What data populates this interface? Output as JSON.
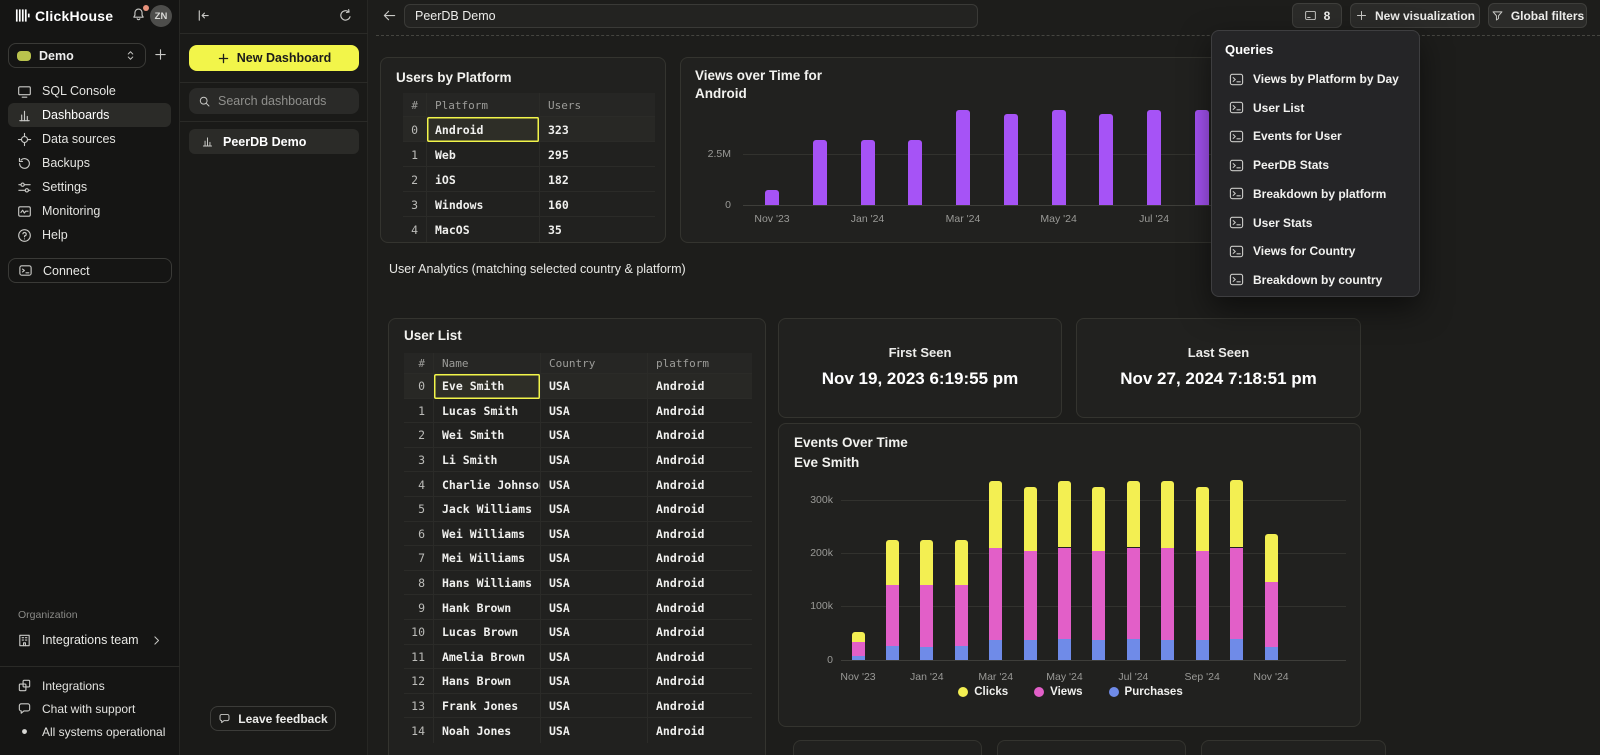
{
  "colors": {
    "accent_yellow": "#f2f54a",
    "purple": "#a653f6",
    "magenta": "#e25fc8",
    "blue": "#6f8be8",
    "chart_yellow": "#f3ef52",
    "notification_dot": "#e8927c",
    "selection_outline": "#f2f54a"
  },
  "sidebar": {
    "logo_label": "ClickHouse",
    "avatar_initials": "ZN",
    "workspace_selector": {
      "value": "Demo"
    },
    "nav": [
      {
        "label": "SQL Console",
        "icon": "sql-console-icon",
        "active": false
      },
      {
        "label": "Dashboards",
        "icon": "bar-chart-icon",
        "active": true
      },
      {
        "label": "Data sources",
        "icon": "data-sources-icon",
        "active": false
      },
      {
        "label": "Backups",
        "icon": "backups-icon",
        "active": false
      },
      {
        "label": "Settings",
        "icon": "settings-icon",
        "active": false
      },
      {
        "label": "Monitoring",
        "icon": "monitoring-icon",
        "active": false
      },
      {
        "label": "Help",
        "icon": "help-icon",
        "active": false
      }
    ],
    "connect_label": "Connect",
    "organization_section_label": "Organization",
    "organization_team": {
      "label": "Integrations team"
    },
    "footer_items": [
      {
        "label": "Integrations",
        "icon": "integrations-icon"
      },
      {
        "label": "Chat with support",
        "icon": "chat-icon"
      },
      {
        "label": "All systems operational",
        "icon": "status-dot-icon"
      }
    ]
  },
  "dashboards_panel": {
    "new_dashboard_button": "New Dashboard",
    "search_placeholder": "Search dashboards",
    "items": [
      {
        "label": "PeerDB Demo",
        "icon": "bar-chart-icon",
        "selected": true
      }
    ],
    "leave_feedback_button": "Leave feedback"
  },
  "topbar": {
    "title_value": "PeerDB Demo",
    "queries_count_button": "8",
    "new_visualization_button": "New visualization",
    "global_filters_button": "Global filters"
  },
  "queries_panel": {
    "title": "Queries",
    "items": [
      "Views by Platform by Day",
      "User List",
      "Events for User",
      "PeerDB Stats",
      "Breakdown by platform",
      "User Stats",
      "Views for Country",
      "Breakdown by country"
    ]
  },
  "users_by_platform": {
    "title": "Users by Platform",
    "columns": [
      "#",
      "Platform",
      "Users"
    ],
    "rows": [
      {
        "index": "0",
        "platform": "Android",
        "users": "323"
      },
      {
        "index": "1",
        "platform": "Web",
        "users": "295"
      },
      {
        "index": "2",
        "platform": "iOS",
        "users": "182"
      },
      {
        "index": "3",
        "platform": "Windows",
        "users": "160"
      },
      {
        "index": "4",
        "platform": "MacOS",
        "users": "35"
      }
    ],
    "selected_platform": "Android"
  },
  "analytics_section_label": "User Analytics (matching selected country & platform)",
  "user_list": {
    "title": "User List",
    "columns": [
      "#",
      "Name",
      "Country",
      "platform"
    ],
    "rows": [
      {
        "index": "0",
        "name": "Eve Smith",
        "country": "USA",
        "platform": "Android"
      },
      {
        "index": "1",
        "name": "Lucas Smith",
        "country": "USA",
        "platform": "Android"
      },
      {
        "index": "2",
        "name": "Wei Smith",
        "country": "USA",
        "platform": "Android"
      },
      {
        "index": "3",
        "name": "Li Smith",
        "country": "USA",
        "platform": "Android"
      },
      {
        "index": "4",
        "name": "Charlie Johnson",
        "country": "USA",
        "platform": "Android"
      },
      {
        "index": "5",
        "name": "Jack Williams",
        "country": "USA",
        "platform": "Android"
      },
      {
        "index": "6",
        "name": "Wei Williams",
        "country": "USA",
        "platform": "Android"
      },
      {
        "index": "7",
        "name": "Mei Williams",
        "country": "USA",
        "platform": "Android"
      },
      {
        "index": "8",
        "name": "Hans Williams",
        "country": "USA",
        "platform": "Android"
      },
      {
        "index": "9",
        "name": "Hank Brown",
        "country": "USA",
        "platform": "Android"
      },
      {
        "index": "10",
        "name": "Lucas Brown",
        "country": "USA",
        "platform": "Android"
      },
      {
        "index": "11",
        "name": "Amelia Brown",
        "country": "USA",
        "platform": "Android"
      },
      {
        "index": "12",
        "name": "Hans Brown",
        "country": "USA",
        "platform": "Android"
      },
      {
        "index": "13",
        "name": "Frank Jones",
        "country": "USA",
        "platform": "Android"
      },
      {
        "index": "14",
        "name": "Noah Jones",
        "country": "USA",
        "platform": "Android"
      }
    ],
    "selected_name": "Eve Smith"
  },
  "first_seen": {
    "label": "First Seen",
    "value": "Nov 19, 2023 6:19:55 pm"
  },
  "last_seen": {
    "label": "Last Seen",
    "value": "Nov 27, 2024 7:18:51 pm"
  },
  "chart_data": [
    {
      "id": "views-over-time",
      "type": "bar",
      "title": "Views over Time for Android",
      "title_lines": [
        "Views over Time for",
        "Android"
      ],
      "x": [
        "Nov '23",
        "Dec '23",
        "Jan '24",
        "Feb '24",
        "Mar '24",
        "Apr '24",
        "May '24",
        "Jun '24",
        "Jul '24",
        "Aug '24"
      ],
      "values_millions": [
        0.75,
        3.2,
        3.2,
        3.2,
        4.7,
        4.5,
        4.7,
        4.5,
        4.7,
        4.7
      ],
      "x_tick_labels": [
        "Nov '23",
        "Jan '24",
        "Mar '24",
        "May '24",
        "Jul '24"
      ],
      "y_tick_labels": [
        "2.5M",
        "0"
      ],
      "ylim_millions": [
        0,
        5.2
      ],
      "gridline_at_millions": 2.5,
      "bar_color": "#a653f6",
      "legend_position": "none"
    },
    {
      "id": "events-over-time",
      "type": "stacked_bar",
      "title": "Events Over Time",
      "subtitle": "Eve Smith",
      "x": [
        "Nov '23",
        "Dec '23",
        "Jan '24",
        "Feb '24",
        "Mar '24",
        "Apr '24",
        "May '24",
        "Jun '24",
        "Jul '24",
        "Aug '24",
        "Sep '24",
        "Oct '24",
        "Nov '24"
      ],
      "series": [
        {
          "name": "Clicks",
          "color": "#f3ef52",
          "values_thousands": [
            19,
            85,
            85,
            86,
            125,
            121,
            124,
            121,
            124,
            125,
            121,
            126,
            91
          ]
        },
        {
          "name": "Views",
          "color": "#e25fc8",
          "values_thousands": [
            26,
            114,
            115,
            114,
            173,
            167,
            172,
            167,
            172,
            173,
            167,
            172,
            121
          ]
        },
        {
          "name": "Purchases",
          "color": "#6f8be8",
          "values_thousands": [
            7,
            26,
            25,
            26,
            37,
            37,
            39,
            37,
            39,
            37,
            37,
            39,
            25
          ]
        }
      ],
      "stack_order_bottom_to_top": [
        "Purchases",
        "Views",
        "Clicks"
      ],
      "x_tick_labels": [
        "Nov '23",
        "Jan '24",
        "Mar '24",
        "May '24",
        "Jul '24",
        "Sep '24",
        "Nov '24"
      ],
      "y_tick_labels": [
        "300k",
        "200k",
        "100k",
        "0"
      ],
      "ylim_thousands": [
        0,
        345
      ],
      "legend": [
        {
          "label": "Clicks",
          "color": "#f3ef52"
        },
        {
          "label": "Views",
          "color": "#e25fc8"
        },
        {
          "label": "Purchases",
          "color": "#6f8be8"
        }
      ],
      "legend_position": "bottom"
    }
  ]
}
